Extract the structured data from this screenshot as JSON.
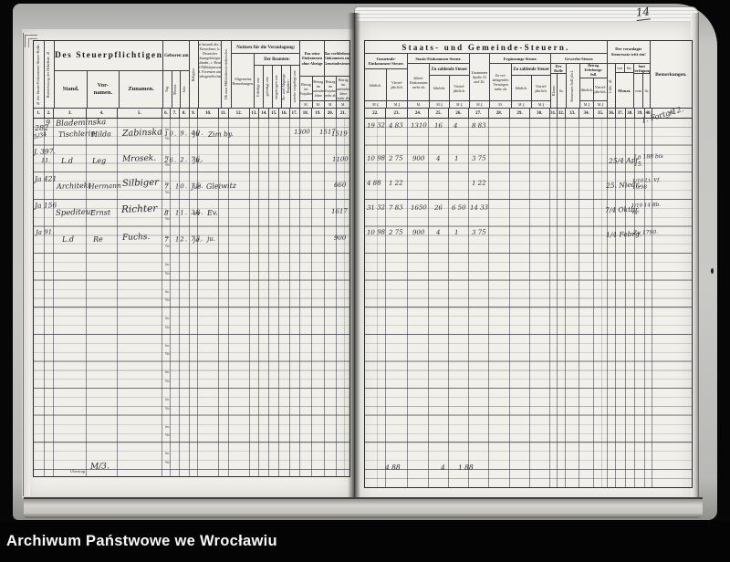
{
  "scan": {
    "page_number": "14",
    "caption": "Archiwum Państwowe we Wrocławiu"
  },
  "left_page": {
    "header": {
      "col1": "№ der Staats-Einkommen-Steuer-Rolle.",
      "col2": "Bezeichnung der Hebeliste №.",
      "group_taxpayer": "Des Steuerpflichtigen",
      "col3": "Stand.",
      "col4": "Vor- namen.",
      "col5": "Zunamen.",
      "group_born": "Geboren am",
      "col6": "Tag.",
      "col7": "Monat.",
      "col8": "Jahr.",
      "col9": "Religion.",
      "col10": "Ist bestraft als: a. Einwohner, b. Deutscher Reichsangehöriger und Ausländer, c. Beamter und Militärpersonen, d. Forensen und Betriebsgesellschaften.",
      "col11": "Ob zum Militärdienst einberufen.",
      "group_notes": "Notizen für die Veranlagung:",
      "col12": "Allgemeine Bemerkungen.",
      "group_officials": "Der Beamten:",
      "col13": "Erledigt am:",
      "col14": "gefertigt am:",
      "col15": "eingetragen am:",
      "col16": "Zu- und Abgänge Register:",
      "col17": "wieder vorgelegt am:",
      "group_net_income": "Das reine Einkommen ohne Abzüge",
      "col18": "Betrag im Vorjahre",
      "col19": "Betrag im laufenden Jahre",
      "group_municipal": "Das verbliebene Einkommen zur Gemeindesteuer",
      "col20": "Betrag im Vorjahre mehr als",
      "col21": "Betrag im laufenden Jahre mehr als",
      "unit": "M.",
      "numbers": [
        "1.",
        "2.",
        "3.",
        "4.",
        "5.",
        "6.",
        "7.",
        "8.",
        "9.",
        "10.",
        "11.",
        "12.",
        "13.",
        "14.",
        "15.",
        "16.",
        "17.",
        "18.",
        "19.",
        "20.",
        "21."
      ]
    },
    "row_marks": {
      "line2": "Jm.",
      "line3": "Wo."
    },
    "rows": [
      {
        "nr": "282",
        "nr2": "5/34",
        "haus": "9",
        "stand": "Blademinska",
        "stand2": "Tischlerin",
        "vorname": "Hilda",
        "zuname": "Zabinska",
        "geboren": "10. 9. 40.",
        "religion": "ju",
        "notiz": "Zim by.",
        "einkommen_vorjahr": "1300",
        "gemeinde_vorjahr": "1517",
        "gemeinde_laufend": "1519"
      },
      {
        "nr": "J. 397.",
        "nr2": "11.",
        "stand": "L.d",
        "vorname": "Leg",
        "zuname": "Mrosek.",
        "geboren": "26. 2. 76.",
        "religion": "ju.",
        "gemeinde_laufend": "1100"
      },
      {
        "nr": "Ja 421",
        "stand": "Architekt",
        "vorname": "Hermann",
        "zuname": "Silbiger",
        "geboren": "7. 10. 75.",
        "religion": "jud",
        "notiz": "Gleiwitz",
        "gemeinde_laufend": "660"
      },
      {
        "nr": "Ja 156",
        "stand": "Spediteur",
        "vorname": "Ernst",
        "zuname": "Richter",
        "geboren": "8. 11. 38.",
        "religion": "ev",
        "notiz": "Ev.",
        "gemeinde_laufend": "1617"
      },
      {
        "nr": "Ja 91.",
        "stand": "L.d",
        "vorname": "Re",
        "zuname": "Fuchs.",
        "geboren": "7. 12. 73.",
        "religion": "ju.",
        "notiz": "ju.",
        "gemeinde_laufend": "900"
      }
    ],
    "footer": {
      "label": "Übertrag",
      "value": "M/3."
    }
  },
  "right_page": {
    "header": {
      "title": "Staats- und Gemeinde-Steuern.",
      "group_municipal_income": "Gemeinde- Einkommen-Steuer.",
      "col22": "Jährlich.",
      "col23": "Viertel- jährlich.",
      "group_state_income": "Staats-Einkommen-Steuer.",
      "col24": "Jahres- Einkommen mehr als",
      "group_tax_due": "Zu zahlende Steuer",
      "col25": "Jährlich.",
      "col26": "Viertel- jährlich.",
      "col27": "Zusammen Spalte 23 und 26.",
      "group_supplement": "Ergänzungs-Steuer.",
      "col28": "Zu ver- anlagendes Vermögen mehr als",
      "col29": "Jährlich.",
      "col30": "Viertel- jährlich.",
      "group_trade": "Gewerbe-Steuer.",
      "group_roll": "Der Rolle",
      "col31": "Klasse.",
      "col32": "№.",
      "col33": "Steuersatz Soll jährl.",
      "group_amount": "Betrag. Erhebungs-Soll.",
      "col34": "Jährlich.",
      "col35": "Viertel- jährlich.",
      "group_rate_effective": "Der veranlagte Steuersatz tritt ein!",
      "col36": "Lfde. №.",
      "col37_top": "von",
      "col38_top": "bis",
      "col37_38": "Monat.",
      "group_decree": "laut Verfügung",
      "col39": "vom",
      "col40": "№",
      "col41": "Bemerkungen.",
      "unit": "M ₰",
      "unit_m": "M.",
      "numbers": [
        "22.",
        "23.",
        "24.",
        "25.",
        "26.",
        "27.",
        "28.",
        "29.",
        "30.",
        "31.",
        "32.",
        "33.",
        "34.",
        "35.",
        "36.",
        "37.",
        "38.",
        "39.",
        "40.",
        "41."
      ]
    },
    "rows": [
      {
        "gemeinde_jaehrlich": "19 32",
        "gemeinde_viertel": "4 83",
        "jahres_einkommen": "1310",
        "staat_jaehrlich": "16",
        "staat_viertel": "4",
        "zusammen": "8 83",
        "bemerkung_diagonal": "1. Fortg/12."
      },
      {
        "gemeinde_jaehrlich": "10 98",
        "gemeinde_viertel": "2 75",
        "jahres_einkommen": "900",
        "staat_jaehrlich": "4",
        "staat_viertel": "1",
        "zusammen": "3 75",
        "monat": "25/4 Apr.",
        "verfuegung": "Ln 188 bis 15."
      },
      {
        "gemeinde_jaehrlich": "4 88",
        "gemeinde_viertel": "1 22",
        "zusammen": "1 22",
        "monat": "25. Niedr.",
        "verfuegung": "1/10 Lt. Vf. 10/98"
      },
      {
        "gemeinde_jaehrlich": "31 32",
        "gemeinde_viertel": "7 83",
        "jahres_einkommen": "1650",
        "staat_jaehrlich": "26",
        "staat_viertel": "6 50",
        "zusammen": "14 33",
        "monat": "7/4 Oktbr.",
        "verfuegung": "1/10 14 Rb. vg."
      },
      {
        "gemeinde_jaehrlich": "10 98",
        "gemeinde_viertel": "2 75",
        "jahres_einkommen": "900",
        "staat_jaehrlich": "4",
        "staat_viertel": "1",
        "zusammen": "3 75",
        "monat": "1/4 Febrg.",
        "verfuegung": "Zu 1790."
      }
    ],
    "totals": {
      "gemeinde_viertel": "4 88",
      "staat": "4",
      "zusammen": "1 88"
    }
  }
}
